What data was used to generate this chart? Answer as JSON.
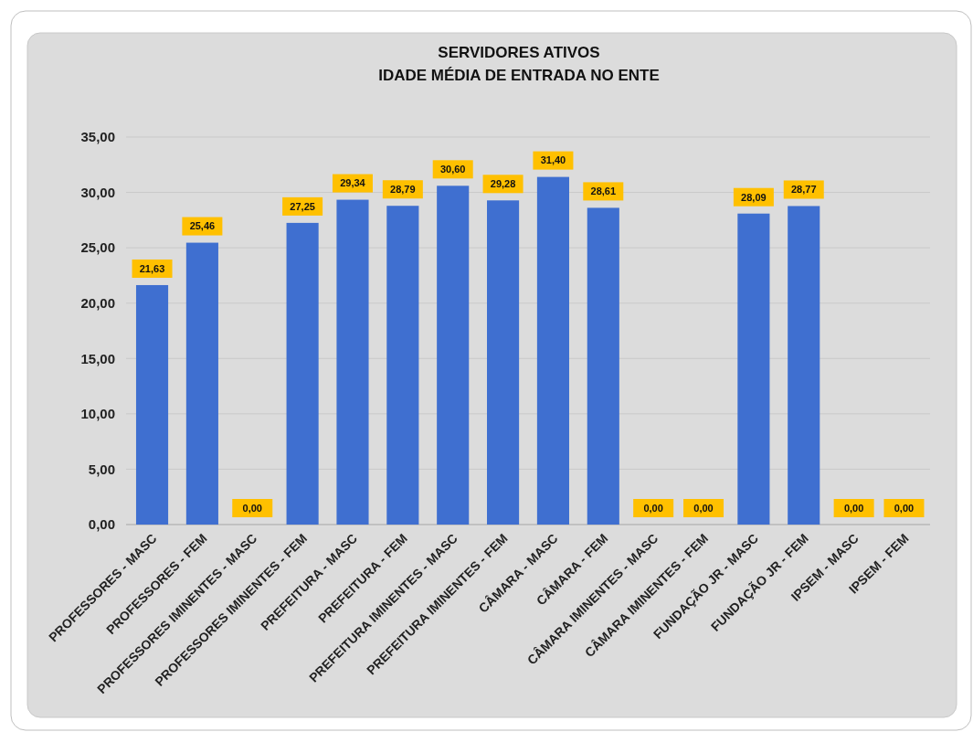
{
  "chart_data": {
    "type": "bar",
    "title": "SERVIDORES ATIVOS",
    "subtitle": "IDADE MÉDIA DE ENTRADA NO ENTE",
    "categories": [
      "PROFESSORES - MASC",
      "PROFESSORES - FEM",
      "PROFESSORES IMINENTES - MASC",
      "PROFESSORES IMINENTES - FEM",
      "PREFEITURA - MASC",
      "PREFEITURA - FEM",
      "PREFEITURA IMINENTES - MASC",
      "PREFEITURA IMINENTES - FEM",
      "CÂMARA - MASC",
      "CÂMARA - FEM",
      "CÂMARA IMINENTES - MASC",
      "CÂMARA IMINENTES - FEM",
      "FUNDAÇÃO JR - MASC",
      "FUNDAÇÃO JR - FEM",
      "IPSEM - MASC",
      "IPSEM - FEM"
    ],
    "values": [
      21.63,
      25.46,
      0,
      27.25,
      29.34,
      28.79,
      30.6,
      29.28,
      31.4,
      28.61,
      0,
      0,
      28.09,
      28.77,
      0,
      0
    ],
    "value_labels": [
      "21,63",
      "25,46",
      "0,00",
      "27,25",
      "29,34",
      "28,79",
      "30,60",
      "29,28",
      "31,40",
      "28,61",
      "0,00",
      "0,00",
      "28,09",
      "28,77",
      "0,00",
      "0,00"
    ],
    "color": "#3f6fd0",
    "ylim": [
      0,
      35
    ],
    "yticks": [
      {
        "value": 0,
        "label": "0,00"
      },
      {
        "value": 5,
        "label": "5,00"
      },
      {
        "value": 10,
        "label": "10,00"
      },
      {
        "value": 15,
        "label": "15,00"
      },
      {
        "value": 20,
        "label": "20,00"
      },
      {
        "value": 25,
        "label": "25,00"
      },
      {
        "value": 30,
        "label": "30,00"
      },
      {
        "value": 35,
        "label": "35,00"
      }
    ],
    "grid": "y"
  }
}
